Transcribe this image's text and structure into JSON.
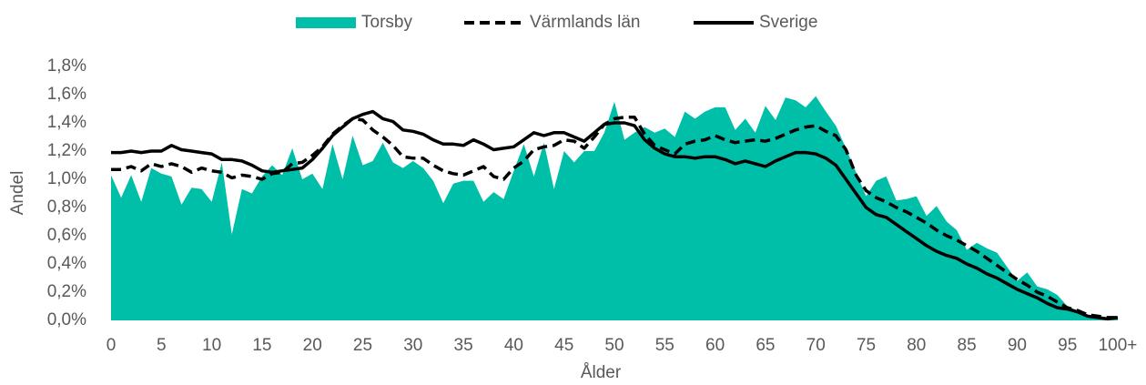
{
  "chart_data": {
    "type": "area_line",
    "x_label": "Ålder",
    "y_label": "Andel",
    "categories": [
      "0",
      null,
      null,
      null,
      null,
      "5",
      null,
      null,
      null,
      null,
      "10",
      null,
      null,
      null,
      null,
      "15",
      null,
      null,
      null,
      null,
      "20",
      null,
      null,
      null,
      null,
      "25",
      null,
      null,
      null,
      null,
      "30",
      null,
      null,
      null,
      null,
      "35",
      null,
      null,
      null,
      null,
      "40",
      null,
      null,
      null,
      null,
      "45",
      null,
      null,
      null,
      null,
      "50",
      null,
      null,
      null,
      null,
      "55",
      null,
      null,
      null,
      null,
      "60",
      null,
      null,
      null,
      null,
      "65",
      null,
      null,
      null,
      null,
      "70",
      null,
      null,
      null,
      null,
      "75",
      null,
      null,
      null,
      null,
      "80",
      null,
      null,
      null,
      null,
      "85",
      null,
      null,
      null,
      null,
      "90",
      null,
      null,
      null,
      null,
      "95",
      null,
      null,
      null,
      null,
      "100+"
    ],
    "series": [
      {
        "name": "Torsby",
        "color": "#00bfa8",
        "style": "area",
        "values": [
          1.03,
          0.87,
          1.03,
          0.84,
          1.08,
          1.04,
          1.02,
          0.82,
          0.94,
          0.93,
          0.84,
          1.12,
          0.61,
          0.93,
          0.9,
          1.02,
          1.1,
          1.03,
          1.22,
          1.0,
          1.04,
          0.93,
          1.25,
          1.0,
          1.31,
          1.1,
          1.13,
          1.26,
          1.12,
          1.08,
          1.13,
          1.08,
          0.99,
          0.83,
          0.97,
          0.99,
          0.99,
          0.84,
          0.91,
          0.86,
          1.06,
          1.25,
          1.02,
          1.26,
          0.93,
          1.2,
          1.12,
          1.2,
          1.2,
          1.33,
          1.55,
          1.28,
          1.33,
          1.37,
          1.33,
          1.36,
          1.3,
          1.48,
          1.43,
          1.48,
          1.51,
          1.51,
          1.35,
          1.43,
          1.33,
          1.52,
          1.42,
          1.58,
          1.56,
          1.51,
          1.59,
          1.48,
          1.38,
          1.22,
          1.05,
          0.88,
          0.99,
          1.02,
          0.85,
          0.86,
          0.88,
          0.74,
          0.81,
          0.7,
          0.64,
          0.5,
          0.55,
          0.51,
          0.48,
          0.38,
          0.28,
          0.34,
          0.24,
          0.22,
          0.18,
          0.1,
          0.07,
          0.04,
          0.03,
          0.02,
          0.02
        ]
      },
      {
        "name": "Värmlands län",
        "color": "#000000",
        "style": "dashed",
        "values": [
          1.07,
          1.07,
          1.09,
          1.06,
          1.11,
          1.09,
          1.11,
          1.09,
          1.05,
          1.08,
          1.06,
          1.05,
          1.01,
          1.03,
          1.02,
          1.0,
          1.04,
          1.05,
          1.11,
          1.12,
          1.17,
          1.23,
          1.32,
          1.38,
          1.43,
          1.42,
          1.35,
          1.3,
          1.24,
          1.16,
          1.15,
          1.15,
          1.1,
          1.06,
          1.04,
          1.03,
          1.06,
          1.09,
          1.02,
          1.0,
          1.08,
          1.13,
          1.21,
          1.23,
          1.24,
          1.28,
          1.27,
          1.22,
          1.3,
          1.39,
          1.43,
          1.44,
          1.44,
          1.32,
          1.24,
          1.21,
          1.18,
          1.25,
          1.27,
          1.28,
          1.31,
          1.28,
          1.26,
          1.27,
          1.28,
          1.27,
          1.29,
          1.32,
          1.35,
          1.37,
          1.38,
          1.34,
          1.31,
          1.21,
          1.03,
          0.92,
          0.87,
          0.84,
          0.8,
          0.77,
          0.73,
          0.69,
          0.64,
          0.6,
          0.57,
          0.53,
          0.49,
          0.44,
          0.39,
          0.34,
          0.29,
          0.25,
          0.2,
          0.17,
          0.13,
          0.09,
          0.07,
          0.04,
          0.03,
          0.02,
          0.02
        ]
      },
      {
        "name": "Sverige",
        "color": "#000000",
        "style": "solid",
        "values": [
          1.19,
          1.19,
          1.2,
          1.19,
          1.2,
          1.2,
          1.24,
          1.21,
          1.2,
          1.19,
          1.18,
          1.14,
          1.14,
          1.13,
          1.1,
          1.06,
          1.05,
          1.06,
          1.07,
          1.08,
          1.14,
          1.22,
          1.31,
          1.37,
          1.43,
          1.46,
          1.48,
          1.43,
          1.41,
          1.35,
          1.34,
          1.32,
          1.28,
          1.25,
          1.25,
          1.24,
          1.28,
          1.25,
          1.21,
          1.22,
          1.23,
          1.28,
          1.33,
          1.31,
          1.33,
          1.33,
          1.3,
          1.27,
          1.33,
          1.39,
          1.4,
          1.4,
          1.38,
          1.28,
          1.22,
          1.18,
          1.16,
          1.16,
          1.15,
          1.16,
          1.16,
          1.14,
          1.11,
          1.13,
          1.11,
          1.09,
          1.13,
          1.16,
          1.19,
          1.19,
          1.18,
          1.15,
          1.1,
          1.0,
          0.9,
          0.8,
          0.75,
          0.73,
          0.68,
          0.63,
          0.58,
          0.53,
          0.49,
          0.46,
          0.44,
          0.4,
          0.37,
          0.33,
          0.3,
          0.26,
          0.22,
          0.19,
          0.16,
          0.12,
          0.09,
          0.08,
          0.06,
          0.03,
          0.02,
          0.01,
          0.02
        ]
      }
    ],
    "ylim": [
      0,
      1.8
    ],
    "yticks": [
      {
        "value": 0,
        "label": "0,0%"
      },
      {
        "value": 0.2,
        "label": "0,2%"
      },
      {
        "value": 0.4,
        "label": "0,4%"
      },
      {
        "value": 0.6,
        "label": "0,6%"
      },
      {
        "value": 0.8,
        "label": "0,8%"
      },
      {
        "value": 1.0,
        "label": "1,0%"
      },
      {
        "value": 1.2,
        "label": "1,2%"
      },
      {
        "value": 1.4,
        "label": "1,4%"
      },
      {
        "value": 1.6,
        "label": "1,6%"
      },
      {
        "value": 1.8,
        "label": "1,8%"
      }
    ],
    "grid": false,
    "legend": "top"
  }
}
